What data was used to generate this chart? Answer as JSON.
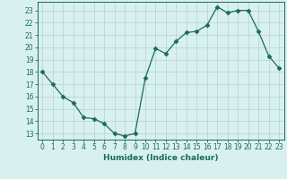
{
  "x": [
    0,
    1,
    2,
    3,
    4,
    5,
    6,
    7,
    8,
    9,
    10,
    11,
    12,
    13,
    14,
    15,
    16,
    17,
    18,
    19,
    20,
    21,
    22,
    23
  ],
  "y": [
    18,
    17,
    16,
    15.5,
    14.3,
    14.2,
    13.8,
    13.0,
    12.8,
    13.0,
    17.5,
    19.9,
    19.5,
    20.5,
    21.2,
    21.3,
    21.8,
    23.3,
    22.8,
    23.0,
    23.0,
    21.3,
    19.3,
    18.3
  ],
  "line_color": "#1a6b5a",
  "marker": "D",
  "marker_size": 2.5,
  "bg_color": "#d9f0f0",
  "grid_color": "#b8d8d8",
  "xlabel": "Humidex (Indice chaleur)",
  "ylim": [
    12.5,
    23.7
  ],
  "xlim": [
    -0.5,
    23.5
  ],
  "yticks": [
    13,
    14,
    15,
    16,
    17,
    18,
    19,
    20,
    21,
    22,
    23
  ],
  "xticks": [
    0,
    1,
    2,
    3,
    4,
    5,
    6,
    7,
    8,
    9,
    10,
    11,
    12,
    13,
    14,
    15,
    16,
    17,
    18,
    19,
    20,
    21,
    22,
    23
  ],
  "tick_color": "#1a6b5a",
  "label_fontsize": 6.5,
  "tick_fontsize": 5.5
}
